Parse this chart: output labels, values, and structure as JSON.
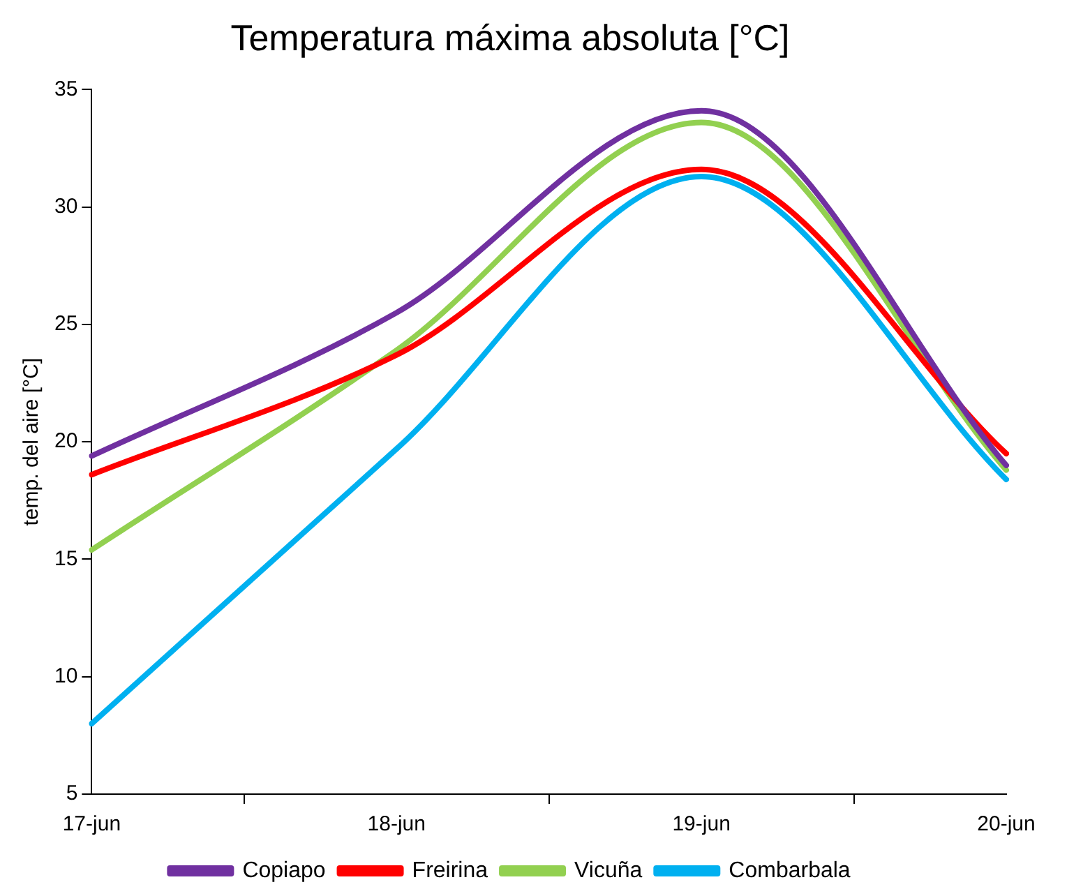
{
  "chart_data": {
    "type": "line",
    "title": "Temperatura máxima absoluta [°C]",
    "ylabel": "temp. del aire [°C]",
    "categories": [
      "17-jun",
      "18-jun",
      "19-jun",
      "20-jun"
    ],
    "series": [
      {
        "name": "Copiapo",
        "color": "#7030a0",
        "values": [
          19.4,
          25.5,
          34.1,
          19.0
        ]
      },
      {
        "name": "Freirina",
        "color": "#ff0000",
        "values": [
          18.6,
          23.7,
          31.6,
          19.5
        ]
      },
      {
        "name": "Vicuña",
        "color": "#92d050",
        "values": [
          15.4,
          23.9,
          33.6,
          18.8
        ]
      },
      {
        "name": "Combarbala",
        "color": "#00b0f0",
        "values": [
          8.0,
          19.7,
          31.3,
          18.4
        ]
      }
    ],
    "ylim": [
      5,
      35
    ],
    "yticks": [
      5,
      10,
      15,
      20,
      25,
      30,
      35
    ],
    "grid": false,
    "legend": "bottom",
    "marker": "none",
    "line_style": "solid"
  }
}
